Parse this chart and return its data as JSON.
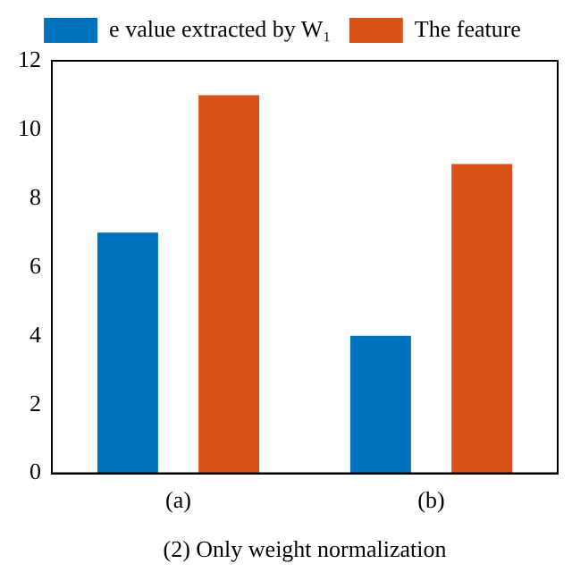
{
  "chart_data": {
    "type": "bar",
    "xlabel": "(2) Only weight normalization",
    "categories": [
      "(a)",
      "(b)"
    ],
    "series": [
      {
        "name": "e value extracted by W₁",
        "color": "#0072bd",
        "values": [
          7,
          4
        ]
      },
      {
        "name": "The feature",
        "color": "#d95319",
        "values": [
          11,
          9
        ]
      }
    ],
    "ylim": [
      0,
      12
    ],
    "yticks": [
      0,
      2,
      4,
      6,
      8,
      10,
      12
    ],
    "grid": false,
    "legend": "top"
  }
}
